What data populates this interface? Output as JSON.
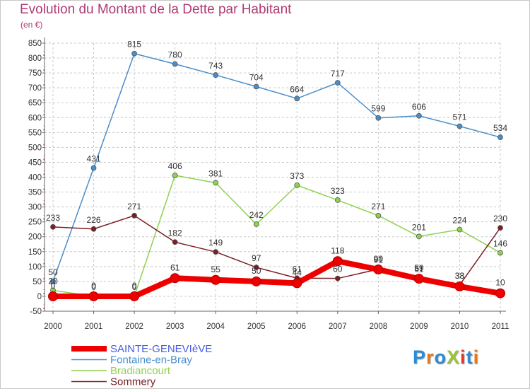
{
  "brand": {
    "logo_text": "ProXiti",
    "letter_colors": [
      "#2b8bd6",
      "#e07a1c",
      "#2b8bd6",
      "#9cc33b",
      "#e0342c",
      "#2b8bd6",
      "#e07a1c"
    ]
  },
  "colors": {
    "title": "#b03a73",
    "grid": "#c8c8c8",
    "axis_marker": "#d71b4e"
  },
  "chart_data": {
    "type": "line",
    "title": "Evolution du Montant de la Dette par Habitant",
    "subtitle": "(en €)",
    "xlabel": "",
    "ylabel": "",
    "ylim": [
      -50,
      850
    ],
    "y_ticks": [
      -50,
      0,
      50,
      100,
      150,
      200,
      250,
      300,
      350,
      400,
      450,
      500,
      550,
      600,
      650,
      700,
      750,
      800,
      850
    ],
    "categories": [
      "2000",
      "2001",
      "2002",
      "2003",
      "2004",
      "2005",
      "2006",
      "2007",
      "2008",
      "2009",
      "2010",
      "2011"
    ],
    "grid": true,
    "legend_position": "bottom-left",
    "series": [
      {
        "name": "SAINTE-GENEVIèVE",
        "color": "#ef0000",
        "legend_color": "#4a5ce0",
        "style": "thick",
        "values": [
          0,
          0,
          0,
          61,
          55,
          50,
          44,
          118,
          90,
          59,
          33,
          10
        ],
        "labels": [
          "0",
          "0",
          "0",
          "61",
          "55",
          "50",
          "44",
          "118",
          "90",
          "59",
          "33",
          "10"
        ]
      },
      {
        "name": "Fontaine-en-Bray",
        "color": "#4a8ec9",
        "legend_color": "#4a8ec9",
        "style": "thin",
        "values": [
          50,
          431,
          815,
          780,
          743,
          704,
          664,
          717,
          599,
          606,
          571,
          534
        ],
        "labels": [
          "50",
          "431",
          "815",
          "780",
          "743",
          "704",
          "664",
          "717",
          "599",
          "606",
          "571",
          "534"
        ]
      },
      {
        "name": "Bradiancourt",
        "color": "#8fd14f",
        "legend_color": "#8fd14f",
        "style": "thin",
        "values": [
          20,
          0,
          0,
          406,
          381,
          242,
          373,
          323,
          271,
          201,
          224,
          146
        ],
        "labels": [
          "20",
          "0",
          "0",
          "406",
          "381",
          "242",
          "373",
          "323",
          "271",
          "201",
          "224",
          "146"
        ]
      },
      {
        "name": "Sommery",
        "color": "#7a1e24",
        "legend_color": "#7a1e24",
        "style": "thin",
        "values": [
          233,
          226,
          271,
          182,
          149,
          97,
          61,
          60,
          91,
          61,
          38,
          230
        ],
        "labels": [
          "233",
          "226",
          "271",
          "182",
          "149",
          "97",
          "61",
          "60",
          "91",
          "61",
          "38",
          "230"
        ]
      }
    ]
  }
}
